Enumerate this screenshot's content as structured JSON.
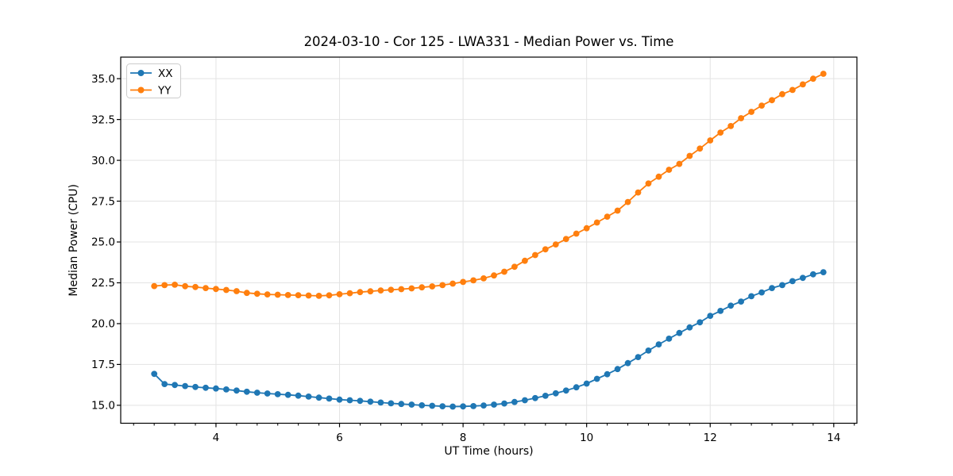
{
  "figure": {
    "background": "#ffffff",
    "frame_color": "#000000",
    "grid_color": "#e3e3e3"
  },
  "chart_data": {
    "type": "line",
    "title": "2024-03-10 - Cor 125 - LWA331 - Median Power vs. Time",
    "xlabel": "UT Time (hours)",
    "ylabel": "Median Power (CPU)",
    "grid": true,
    "legend_position": "upper-left",
    "marker": "circle",
    "xlim": [
      2.458,
      14.375
    ],
    "ylim": [
      13.9,
      36.32
    ],
    "x_ticks": {
      "values": [
        4,
        6,
        8,
        10,
        12,
        14
      ],
      "labels": [
        "4",
        "6",
        "8",
        "10",
        "12",
        "14"
      ],
      "minor_step": 0.333333
    },
    "y_ticks": {
      "values": [
        15.0,
        17.5,
        20.0,
        22.5,
        25.0,
        27.5,
        30.0,
        32.5,
        35.0
      ],
      "labels": [
        "15.0",
        "17.5",
        "20.0",
        "22.5",
        "25.0",
        "27.5",
        "30.0",
        "32.5",
        "35.0"
      ]
    },
    "x": [
      3.0,
      3.167,
      3.333,
      3.5,
      3.667,
      3.833,
      4.0,
      4.167,
      4.333,
      4.5,
      4.667,
      4.833,
      5.0,
      5.167,
      5.333,
      5.5,
      5.667,
      5.833,
      6.0,
      6.167,
      6.333,
      6.5,
      6.667,
      6.833,
      7.0,
      7.167,
      7.333,
      7.5,
      7.667,
      7.833,
      8.0,
      8.167,
      8.333,
      8.5,
      8.667,
      8.833,
      9.0,
      9.167,
      9.333,
      9.5,
      9.667,
      9.833,
      10.0,
      10.167,
      10.333,
      10.5,
      10.667,
      10.833,
      11.0,
      11.167,
      11.333,
      11.5,
      11.667,
      11.833,
      12.0,
      12.167,
      12.333,
      12.5,
      12.667,
      12.833,
      13.0,
      13.167,
      13.333,
      13.5,
      13.667,
      13.833
    ],
    "series": [
      {
        "name": "XX",
        "color": "#1f77b4",
        "values": [
          16.92,
          16.3,
          16.24,
          16.18,
          16.12,
          16.07,
          16.03,
          15.97,
          15.9,
          15.83,
          15.77,
          15.72,
          15.68,
          15.64,
          15.59,
          15.53,
          15.47,
          15.41,
          15.35,
          15.31,
          15.27,
          15.22,
          15.17,
          15.12,
          15.08,
          15.04,
          15.0,
          14.97,
          14.94,
          14.92,
          14.93,
          14.95,
          14.99,
          15.04,
          15.11,
          15.2,
          15.31,
          15.44,
          15.58,
          15.73,
          15.9,
          16.1,
          16.33,
          16.62,
          16.9,
          17.22,
          17.58,
          17.95,
          18.35,
          18.73,
          19.08,
          19.43,
          19.77,
          20.08,
          20.48,
          20.78,
          21.1,
          21.35,
          21.68,
          21.91,
          22.18,
          22.36,
          22.6,
          22.8,
          23.02,
          23.15
        ]
      },
      {
        "name": "YY",
        "color": "#ff7f0e",
        "values": [
          22.3,
          22.36,
          22.38,
          22.29,
          22.24,
          22.18,
          22.12,
          22.06,
          21.99,
          21.88,
          21.83,
          21.79,
          21.77,
          21.75,
          21.74,
          21.72,
          21.7,
          21.73,
          21.8,
          21.86,
          21.93,
          21.98,
          22.03,
          22.07,
          22.11,
          22.16,
          22.22,
          22.28,
          22.36,
          22.45,
          22.55,
          22.65,
          22.77,
          22.95,
          23.18,
          23.48,
          23.85,
          24.2,
          24.55,
          24.85,
          25.18,
          25.51,
          25.84,
          26.19,
          26.55,
          26.92,
          27.45,
          28.03,
          28.58,
          29.0,
          29.42,
          29.78,
          30.27,
          30.72,
          31.22,
          31.7,
          32.1,
          32.58,
          32.97,
          33.35,
          33.68,
          34.05,
          34.31,
          34.65,
          35.0,
          35.3
        ]
      }
    ]
  }
}
